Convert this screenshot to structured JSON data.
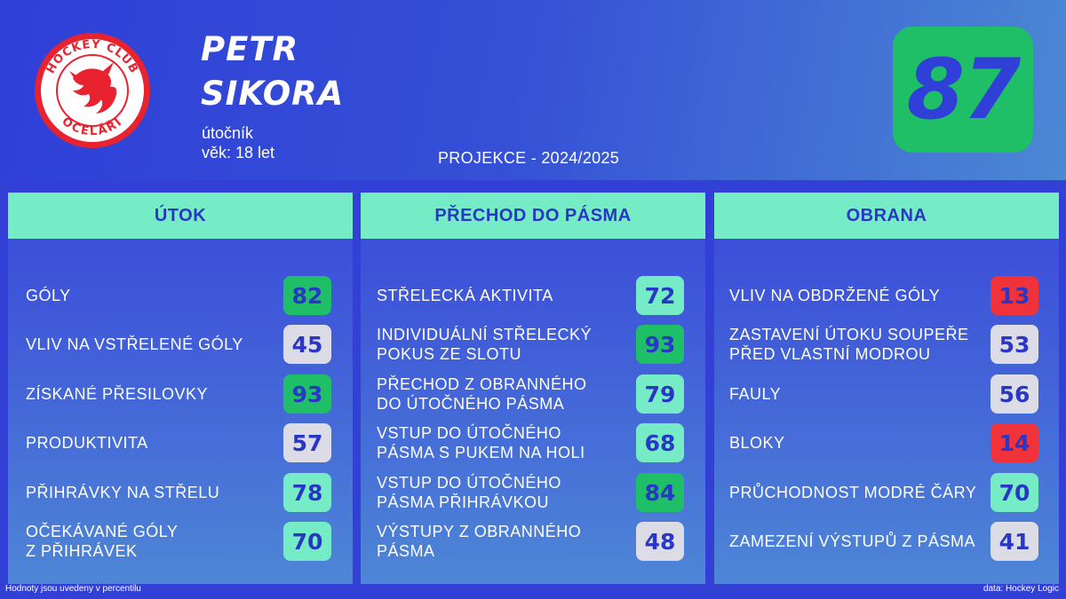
{
  "header": {
    "first_name": "PETR",
    "last_name": "SIKORA",
    "position": "útočník",
    "age": "věk: 18 let",
    "projection": "PROJEKCE - 2024/2025",
    "overall": "87",
    "logo": {
      "top_text": "HOCKEY CLUB",
      "bottom_text": "OCELÁŘI"
    }
  },
  "panels": [
    {
      "title": "ÚTOK",
      "rows": [
        {
          "label_lines": [
            "GÓLY"
          ],
          "value": "82",
          "tier": "high"
        },
        {
          "label_lines": [
            "VLIV NA VSTŘELENÉ GÓLY"
          ],
          "value": "45",
          "tier": "neutral"
        },
        {
          "label_lines": [
            "ZÍSKANÉ PŘESILOVKY"
          ],
          "value": "93",
          "tier": "high"
        },
        {
          "label_lines": [
            "PRODUKTIVITA"
          ],
          "value": "57",
          "tier": "neutral"
        },
        {
          "label_lines": [
            "PŘIHRÁVKY NA STŘELU"
          ],
          "value": "78",
          "tier": "good"
        },
        {
          "label_lines": [
            "OČEKÁVANÉ GÓLY",
            "Z PŘIHRÁVEK"
          ],
          "value": "70",
          "tier": "good"
        }
      ]
    },
    {
      "title": "PŘECHOD DO PÁSMA",
      "rows": [
        {
          "label_lines": [
            "STŘELECKÁ AKTIVITA"
          ],
          "value": "72",
          "tier": "good"
        },
        {
          "label_lines": [
            "INDIVIDUÁLNÍ STŘELECKÝ",
            "POKUS ZE SLOTU"
          ],
          "value": "93",
          "tier": "high"
        },
        {
          "label_lines": [
            "PŘECHOD Z OBRANNÉHO",
            "DO ÚTOČNÉHO PÁSMA"
          ],
          "value": "79",
          "tier": "good"
        },
        {
          "label_lines": [
            "VSTUP DO ÚTOČNÉHO",
            "PÁSMA S PUKEM NA HOLI"
          ],
          "value": "68",
          "tier": "good"
        },
        {
          "label_lines": [
            "VSTUP DO ÚTOČNÉHO",
            "PÁSMA PŘIHRÁVKOU"
          ],
          "value": "84",
          "tier": "high"
        },
        {
          "label_lines": [
            "VÝSTUPY Z OBRANNÉHO",
            "PÁSMA"
          ],
          "value": "48",
          "tier": "neutral"
        }
      ]
    },
    {
      "title": "OBRANA",
      "rows": [
        {
          "label_lines": [
            "VLIV NA OBDRŽENÉ GÓLY"
          ],
          "value": "13",
          "tier": "low"
        },
        {
          "label_lines": [
            "ZASTAVENÍ ÚTOKU SOUPEŘE",
            "PŘED VLASTNÍ MODROU"
          ],
          "value": "53",
          "tier": "neutral"
        },
        {
          "label_lines": [
            "FAULY"
          ],
          "value": "56",
          "tier": "neutral"
        },
        {
          "label_lines": [
            "BLOKY"
          ],
          "value": "14",
          "tier": "low"
        },
        {
          "label_lines": [
            "PRŮCHODNOST MODRÉ ČÁRY"
          ],
          "value": "70",
          "tier": "good"
        },
        {
          "label_lines": [
            "ZAMEZENÍ VÝSTUPŮ Z PÁSMA"
          ],
          "value": "41",
          "tier": "neutral"
        }
      ]
    }
  ],
  "tier_colors": {
    "high": "#1fbf68",
    "good": "#76ecc6",
    "neutral": "#dcdce6",
    "low": "#f0333a"
  },
  "footer": {
    "note": "Hodnoty jsou uvedeny v percentilu",
    "source": "data: Hockey Logic"
  }
}
